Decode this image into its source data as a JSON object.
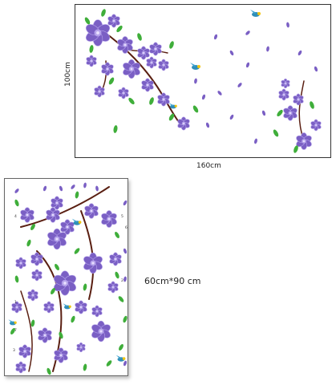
{
  "panel": {
    "height_label": "100cm",
    "width_label": "160cm"
  },
  "sheet": {
    "size_label": "60cm*90 cm",
    "numbers": [
      "4",
      "5",
      "6",
      "2",
      "1",
      "7",
      "3"
    ]
  },
  "colors": {
    "petal": "#7a5fc4",
    "petal_light": "#b4a2ea",
    "leaf": "#3fae3a",
    "branch": "#5a1f12",
    "bird_blue": "#2f8fb8",
    "bird_yellow": "#f1c40f"
  },
  "icons": [
    "flower-icon",
    "leaf-icon",
    "bird-icon",
    "branch-icon",
    "petal-icon"
  ]
}
